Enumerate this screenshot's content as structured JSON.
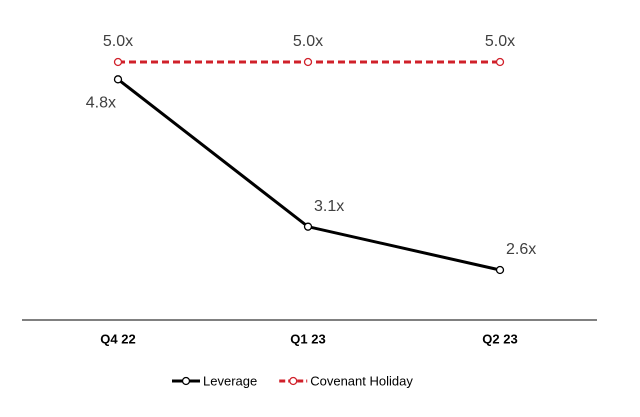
{
  "chart_data": {
    "type": "line",
    "categories": [
      "Q4 22",
      "Q1 23",
      "Q2 23"
    ],
    "series": [
      {
        "name": "Leverage",
        "color": "#000000",
        "style": "solid",
        "values": [
          4.8,
          3.1,
          2.6
        ],
        "value_labels": [
          "4.8x",
          "3.1x",
          "2.6x"
        ]
      },
      {
        "name": "Covenant Holiday",
        "color": "#d0202a",
        "style": "dashed",
        "values": [
          5.0,
          5.0,
          5.0
        ],
        "value_labels": [
          "5.0x",
          "5.0x",
          "5.0x"
        ]
      }
    ],
    "legend": "bottom"
  }
}
